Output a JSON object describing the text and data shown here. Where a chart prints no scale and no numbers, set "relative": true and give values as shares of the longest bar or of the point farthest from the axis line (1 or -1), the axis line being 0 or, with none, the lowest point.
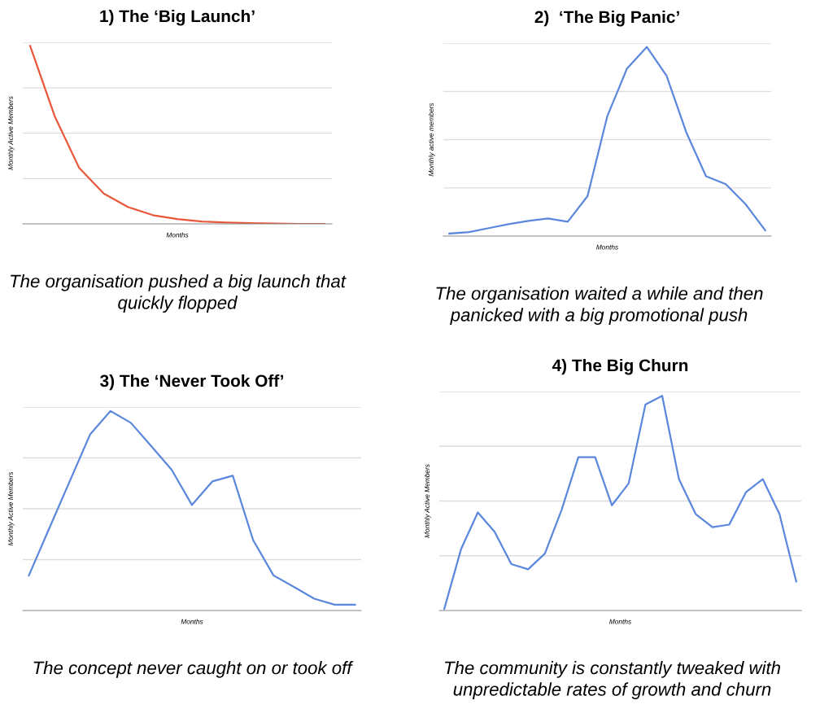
{
  "chart_data": [
    {
      "type": "line",
      "title": "1) The ‘Big Launch’",
      "xlabel": "Months",
      "ylabel": "Monthly Active Members",
      "relative": true,
      "grid": "y",
      "marker": "none",
      "line_style": "solid",
      "categories": [
        null,
        null,
        null,
        null,
        null,
        null,
        null,
        null,
        null,
        null,
        null,
        null,
        null
      ],
      "series": [
        {
          "color": "#e8573a",
          "values": [
            1,
            0.605,
            0.314,
            0.17,
            0.094,
            0.049,
            0.027,
            0.013,
            0.007,
            0.004,
            0.002,
            0,
            0
          ]
        }
      ],
      "annotations": [
        "The organisation pushed a big launch that quickly flopped"
      ]
    },
    {
      "type": "line",
      "title": "2)  ‘The Big Panic’",
      "xlabel": "Months",
      "ylabel": "Monthly active members",
      "relative": true,
      "grid": "y",
      "marker": "none",
      "line_style": "solid",
      "categories": [
        null,
        null,
        null,
        null,
        null,
        null,
        null,
        null,
        null,
        null,
        null,
        null,
        null,
        null,
        null,
        null,
        null
      ],
      "series": [
        {
          "color": "#5b87dc",
          "values": [
            0.013,
            0.021,
            0.042,
            0.063,
            0.08,
            0.093,
            0.076,
            0.211,
            0.633,
            0.886,
            1,
            0.848,
            0.549,
            0.316,
            0.274,
            0.169,
            0.03
          ]
        }
      ],
      "annotations": [
        "The organisation waited a while and then panicked with a big promotional push"
      ]
    },
    {
      "type": "line",
      "title": "3) The ‘Never Took Off’",
      "xlabel": "Months",
      "ylabel": "Monthly Active Members",
      "relative": true,
      "grid": "y",
      "marker": "none",
      "line_style": "solid",
      "categories": [
        null,
        null,
        null,
        null,
        null,
        null,
        null,
        null,
        null,
        null,
        null,
        null,
        null,
        null,
        null,
        null,
        null
      ],
      "series": [
        {
          "color": "#5b87dc",
          "values": [
            0.176,
            0.412,
            0.647,
            0.882,
            1,
            0.941,
            0.824,
            0.706,
            0.529,
            0.647,
            0.676,
            0.353,
            0.176,
            0.118,
            0.059,
            0.029,
            0.029
          ]
        }
      ],
      "annotations": [
        "The concept never caught on or took off"
      ]
    },
    {
      "type": "line",
      "title": "4) The Big Churn",
      "xlabel": "Months",
      "ylabel": "Monthly Active Members",
      "relative": true,
      "grid": "y",
      "marker": "none",
      "line_style": "solid",
      "categories": [
        null,
        null,
        null,
        null,
        null,
        null,
        null,
        null,
        null,
        null,
        null,
        null,
        null,
        null,
        null,
        null,
        null,
        null,
        null,
        null,
        null,
        null
      ],
      "series": [
        {
          "color": "#5b87dc",
          "values": [
            0.008,
            0.286,
            0.457,
            0.367,
            0.216,
            0.192,
            0.265,
            0.469,
            0.714,
            0.714,
            0.49,
            0.592,
            0.959,
            1,
            0.612,
            0.449,
            0.388,
            0.4,
            0.551,
            0.612,
            0.449,
            0.135
          ]
        }
      ],
      "annotations": [
        "The community is constantly tweaked with unpredictable rates of growth and churn"
      ]
    }
  ]
}
